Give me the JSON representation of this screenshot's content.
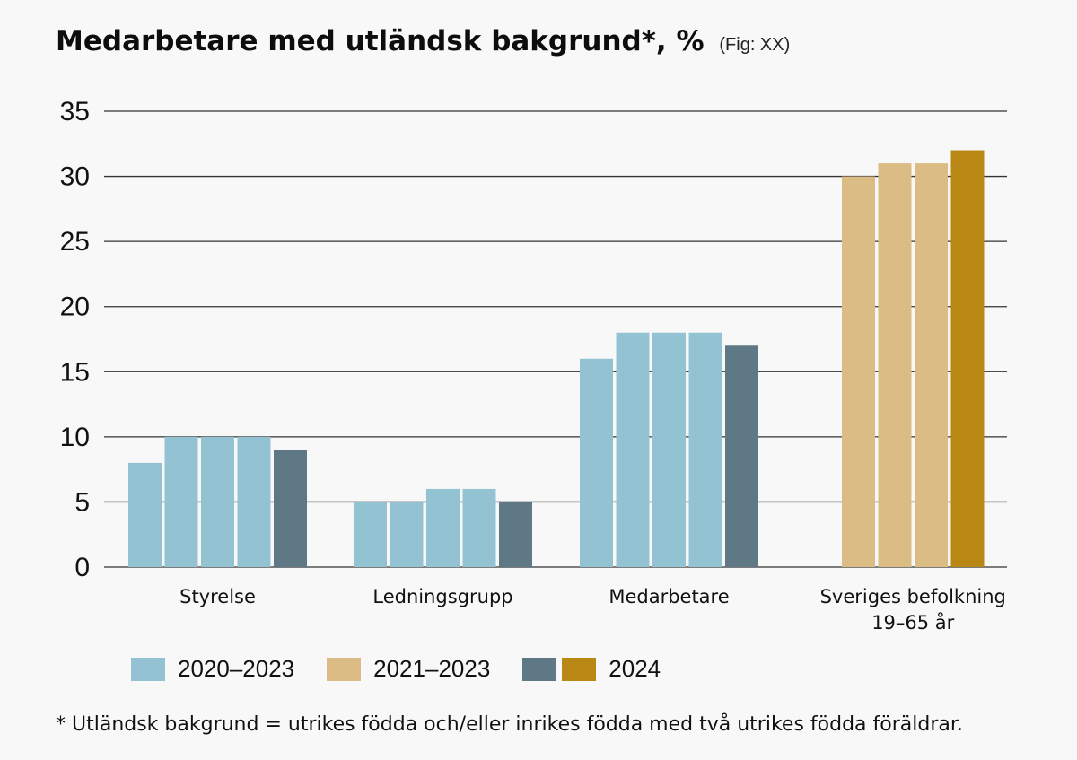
{
  "colors": {
    "light_blue": "#93c3d3",
    "dark_slate": "#5e7985",
    "light_gold": "#dcbc85",
    "dark_gold": "#b98714",
    "grid": "#333333",
    "background": "#f8f8f8"
  },
  "chart_data": {
    "type": "bar",
    "title": "Medarbetare med utländsk bakgrund*, %",
    "title_note": "(Fig: XX)",
    "ylim": [
      0,
      35
    ],
    "yticks": [
      "35",
      "30",
      "25",
      "20",
      "15",
      "10",
      "5",
      "0"
    ],
    "grid": true,
    "legend_position": "bottom",
    "categories": [
      {
        "label_lines": [
          "Styrelse"
        ],
        "bars": [
          {
            "value": 8,
            "color": "light_blue"
          },
          {
            "value": 10,
            "color": "light_blue"
          },
          {
            "value": 10,
            "color": "light_blue"
          },
          {
            "value": 10,
            "color": "light_blue"
          },
          {
            "value": 9,
            "color": "dark_slate"
          }
        ]
      },
      {
        "label_lines": [
          "Ledningsgrupp"
        ],
        "bars": [
          {
            "value": 5,
            "color": "light_blue"
          },
          {
            "value": 5,
            "color": "light_blue"
          },
          {
            "value": 6,
            "color": "light_blue"
          },
          {
            "value": 6,
            "color": "light_blue"
          },
          {
            "value": 5,
            "color": "dark_slate"
          }
        ]
      },
      {
        "label_lines": [
          "Medarbetare"
        ],
        "bars": [
          {
            "value": 16,
            "color": "light_blue"
          },
          {
            "value": 18,
            "color": "light_blue"
          },
          {
            "value": 18,
            "color": "light_blue"
          },
          {
            "value": 18,
            "color": "light_blue"
          },
          {
            "value": 17,
            "color": "dark_slate"
          }
        ]
      },
      {
        "label_lines": [
          "Sveriges befolkning",
          "19–65 år"
        ],
        "bars": [
          {
            "value": 30,
            "color": "light_gold"
          },
          {
            "value": 31,
            "color": "light_gold"
          },
          {
            "value": 31,
            "color": "light_gold"
          },
          {
            "value": 32,
            "color": "dark_gold"
          }
        ]
      }
    ],
    "legend": [
      {
        "label": "2020–2023",
        "swatches": [
          "light_blue"
        ]
      },
      {
        "label": "2021–2023",
        "swatches": [
          "light_gold"
        ]
      },
      {
        "label": "2024",
        "swatches": [
          "dark_slate",
          "dark_gold"
        ]
      }
    ],
    "footnote": "* Utländsk bakgrund = utrikes födda och/eller inrikes födda med två utrikes födda föräldrar."
  }
}
